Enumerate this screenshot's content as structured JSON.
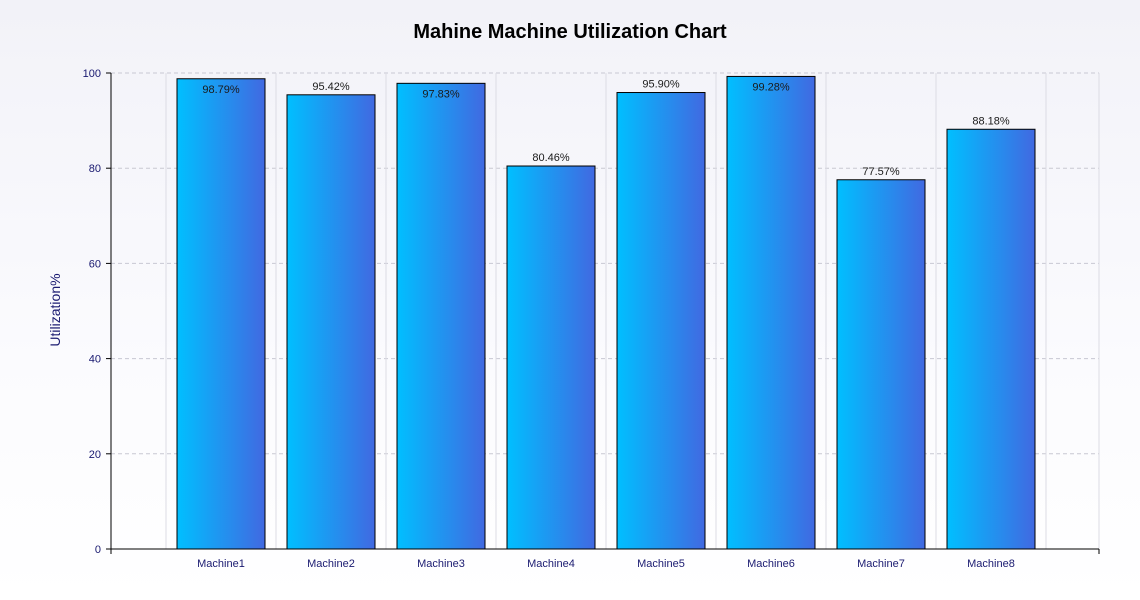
{
  "chart_data": {
    "type": "bar",
    "title": "Mahine Machine Utilization Chart",
    "xlabel": "",
    "ylabel": "Utilization%",
    "categories": [
      "Machine1",
      "Machine2",
      "Machine3",
      "Machine4",
      "Machine5",
      "Machine6",
      "Machine7",
      "Machine8"
    ],
    "values": [
      98.79,
      95.42,
      97.83,
      80.46,
      95.9,
      99.28,
      77.57,
      88.18
    ],
    "data_labels": [
      "98.79%",
      "95.42%",
      "97.83%",
      "80.46%",
      "95.90%",
      "99.28%",
      "77.57%",
      "88.18%"
    ],
    "ylim": [
      0,
      100
    ],
    "yticks": [
      0,
      20,
      40,
      60,
      80,
      100
    ],
    "grid": true,
    "legend": "none",
    "bar_gradient": [
      "#00bfff",
      "#4169e1"
    ],
    "label_color": "#191970"
  }
}
